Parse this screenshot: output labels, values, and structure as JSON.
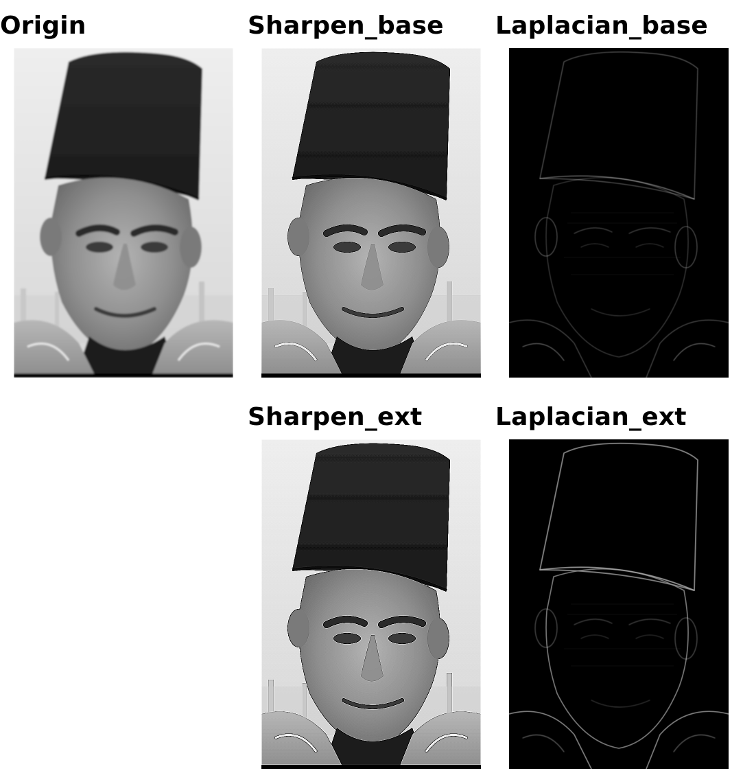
{
  "panels": {
    "origin": {
      "title": "Origin",
      "variant": "photo-soft"
    },
    "sharpen_base": {
      "title": "Sharpen_base",
      "variant": "photo-sharp"
    },
    "laplacian_base": {
      "title": "Laplacian_base",
      "variant": "edges-faint"
    },
    "sharpen_ext": {
      "title": "Sharpen_ext",
      "variant": "photo-sharper"
    },
    "laplacian_ext": {
      "title": "Laplacian_ext",
      "variant": "edges-strong"
    }
  },
  "colors": {
    "background": "#ffffff",
    "title": "#000000",
    "photo_background": "#e6e6e6",
    "edges_background": "#000000"
  }
}
